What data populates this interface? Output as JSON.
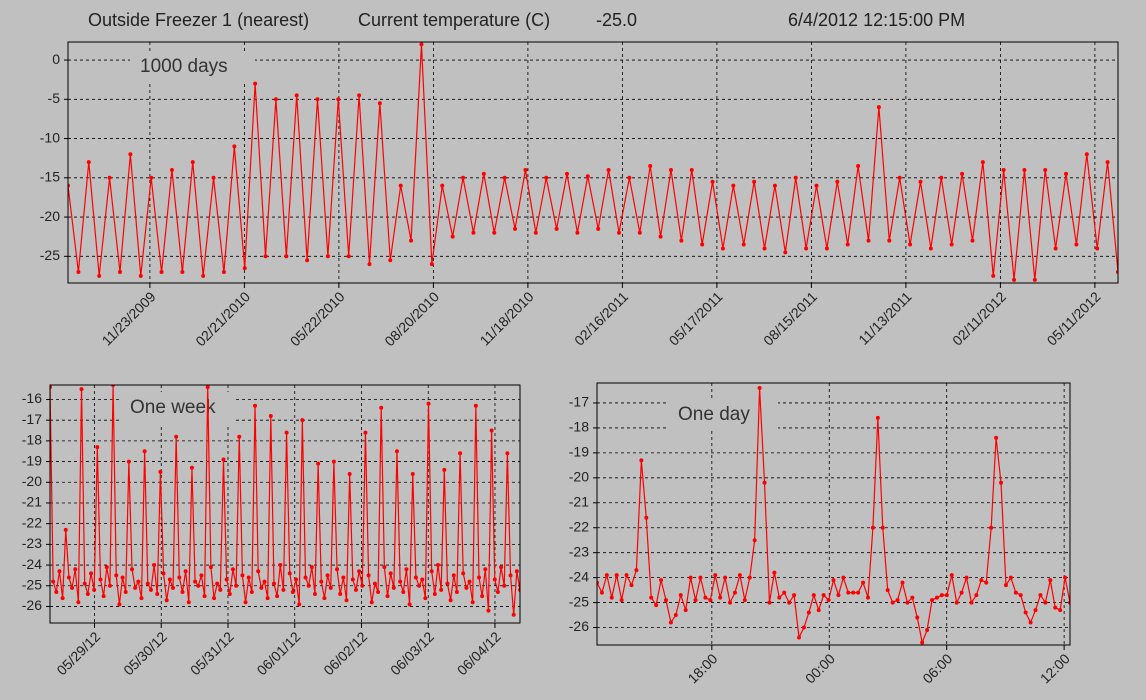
{
  "header": {
    "source": "Outside Freezer 1 (nearest)",
    "measure": "Current temperature (C)",
    "current_value": "-25.0",
    "timestamp": "6/4/2012 12:15:00 PM"
  },
  "chart_data": [
    {
      "type": "line",
      "annotation": "1000 days",
      "color": "#ff0000",
      "grid": true,
      "xlim": [
        "09/06/2009",
        "06/02/2012"
      ],
      "xticks": [
        "11/23/2009",
        "02/21/2010",
        "05/22/2010",
        "08/20/2010",
        "11/18/2010",
        "02/16/2011",
        "05/17/2011",
        "08/15/2011",
        "11/13/2011",
        "02/11/2012",
        "05/11/2012"
      ],
      "ylim": [
        -28.4,
        2.3
      ],
      "yticks": [
        0,
        -5,
        -10,
        -15,
        -20,
        -25
      ],
      "values": [
        -16,
        -27,
        -13,
        -27.5,
        -15,
        -27,
        -12,
        -27.5,
        -15,
        -27,
        -14,
        -27,
        -13,
        -27.5,
        -15,
        -27,
        -11,
        -26.5,
        -3,
        -25,
        -5,
        -25,
        -4.5,
        -25.5,
        -5,
        -25,
        -5,
        -25,
        -4.5,
        -26,
        -5.5,
        -25.5,
        -16,
        -23,
        2,
        -26,
        -16,
        -22.5,
        -15,
        -22,
        -14.5,
        -22,
        -15,
        -21.5,
        -14,
        -22,
        -15,
        -21.5,
        -14.5,
        -22,
        -14.8,
        -21.5,
        -14,
        -22,
        -15,
        -22,
        -13.5,
        -22.5,
        -14,
        -23,
        -14,
        -23.5,
        -15.5,
        -24,
        -16,
        -23.5,
        -15.5,
        -24,
        -16,
        -24.5,
        -15,
        -24,
        -16,
        -24,
        -15.5,
        -23.5,
        -13.5,
        -23,
        -6,
        -23,
        -15,
        -23.5,
        -15.5,
        -24,
        -15,
        -23.5,
        -14.5,
        -23,
        -13,
        -27.5,
        -14,
        -28,
        -14,
        -28,
        -14,
        -24,
        -14.5,
        -23.5,
        -12,
        -24,
        -13,
        -27
      ]
    },
    {
      "type": "line",
      "annotation": "One week",
      "color": "#ff0000",
      "grid": true,
      "xlim": [
        "05/28/12 08:00",
        "06/04/12 09:00"
      ],
      "xticks": [
        "05/29/12",
        "05/30/12",
        "05/31/12",
        "06/01/12",
        "06/02/12",
        "06/03/12",
        "06/04/12"
      ],
      "ylim": [
        -26.8,
        -15.3
      ],
      "yticks": [
        -16,
        -17,
        -18,
        -19,
        -20,
        -21,
        -22,
        -23,
        -24,
        -25,
        -26
      ],
      "values": [
        -15.4,
        -24.8,
        -25.3,
        -24.3,
        -25.6,
        -22.3,
        -24.6,
        -25.1,
        -24.2,
        -25.8,
        -15.5,
        -24.9,
        -25.4,
        -24.4,
        -25.2,
        -18.3,
        -24.7,
        -25.5,
        -24.1,
        -25.0,
        -15.3,
        -24.5,
        -25.9,
        -24.6,
        -25.3,
        -19.0,
        -24.2,
        -25.1,
        -24.8,
        -25.6,
        -18.5,
        -24.9,
        -25.2,
        -24.0,
        -25.4,
        -19.5,
        -24.4,
        -25.7,
        -24.7,
        -25.1,
        -17.8,
        -24.6,
        -25.3,
        -24.3,
        -25.8,
        -19.3,
        -24.8,
        -25.0,
        -24.5,
        -25.5,
        -15.4,
        -24.1,
        -25.6,
        -24.9,
        -25.2,
        -18.9,
        -24.7,
        -25.4,
        -24.2,
        -25.0,
        -17.8,
        -24.5,
        -25.8,
        -24.6,
        -25.3,
        -16.3,
        -24.3,
        -25.1,
        -24.8,
        -25.6,
        -16.8,
        -24.9,
        -25.5,
        -24.0,
        -25.2,
        -17.6,
        -24.4,
        -25.3,
        -24.7,
        -25.9,
        -17.0,
        -24.6,
        -25.0,
        -24.1,
        -25.4,
        -19.1,
        -24.8,
        -25.6,
        -24.5,
        -25.1,
        -19.0,
        -24.2,
        -25.4,
        -24.6,
        -25.7,
        -19.6,
        -24.7,
        -25.2,
        -24.3,
        -25.0,
        -17.6,
        -24.5,
        -25.8,
        -24.9,
        -25.3,
        -16.4,
        -24.1,
        -25.5,
        -24.4,
        -25.1,
        -18.5,
        -24.8,
        -25.3,
        -24.2,
        -25.9,
        -19.6,
        -24.6,
        -25.0,
        -24.7,
        -25.6,
        -16.2,
        -24.3,
        -25.4,
        -24.0,
        -25.2,
        -19.4,
        -24.9,
        -25.7,
        -24.5,
        -25.3,
        -18.6,
        -24.4,
        -25.1,
        -24.8,
        -25.8,
        -16.3,
        -24.6,
        -25.5,
        -24.2,
        -26.2,
        -17.5,
        -24.7,
        -25.3,
        -24.1,
        -25.0,
        -18.6,
        -24.5,
        -26.4,
        -24.3,
        -25.2
      ]
    },
    {
      "type": "line",
      "annotation": "One day",
      "color": "#ff0000",
      "grid": true,
      "xlim": [
        "12:08",
        "12:18"
      ],
      "xticks": [
        "18:00",
        "00:00",
        "06:00",
        "12:00"
      ],
      "ylim": [
        -26.7,
        -16.2
      ],
      "yticks": [
        -17,
        -18,
        -19,
        -20,
        -21,
        -22,
        -23,
        -24,
        -25,
        -26
      ],
      "values": [
        -24.2,
        -24.6,
        -23.9,
        -24.8,
        -23.9,
        -24.9,
        -23.9,
        -24.3,
        -23.7,
        -19.3,
        -21.6,
        -24.8,
        -25.1,
        -24.1,
        -24.9,
        -25.8,
        -25.5,
        -24.7,
        -25.3,
        -24.0,
        -24.9,
        -24.0,
        -24.8,
        -24.9,
        -23.9,
        -24.8,
        -24.0,
        -25.0,
        -24.6,
        -23.9,
        -24.9,
        -24.0,
        -22.5,
        -16.4,
        -20.2,
        -25.0,
        -23.8,
        -24.8,
        -24.6,
        -25.0,
        -24.7,
        -26.4,
        -26.0,
        -25.4,
        -24.7,
        -25.3,
        -24.7,
        -24.9,
        -24.1,
        -24.7,
        -24.0,
        -24.6,
        -24.6,
        -24.6,
        -24.2,
        -24.8,
        -22.0,
        -17.6,
        -22.0,
        -24.5,
        -25.0,
        -24.9,
        -24.2,
        -25.0,
        -24.8,
        -25.6,
        -26.6,
        -26.1,
        -24.9,
        -24.8,
        -24.7,
        -24.7,
        -23.9,
        -25.0,
        -24.6,
        -24.0,
        -25.0,
        -24.7,
        -24.1,
        -24.2,
        -22.0,
        -18.4,
        -20.2,
        -24.3,
        -24.0,
        -24.6,
        -24.7,
        -25.4,
        -25.8,
        -25.3,
        -24.7,
        -25.0,
        -24.1,
        -25.2,
        -25.3,
        -24.0,
        -25.0
      ]
    }
  ]
}
